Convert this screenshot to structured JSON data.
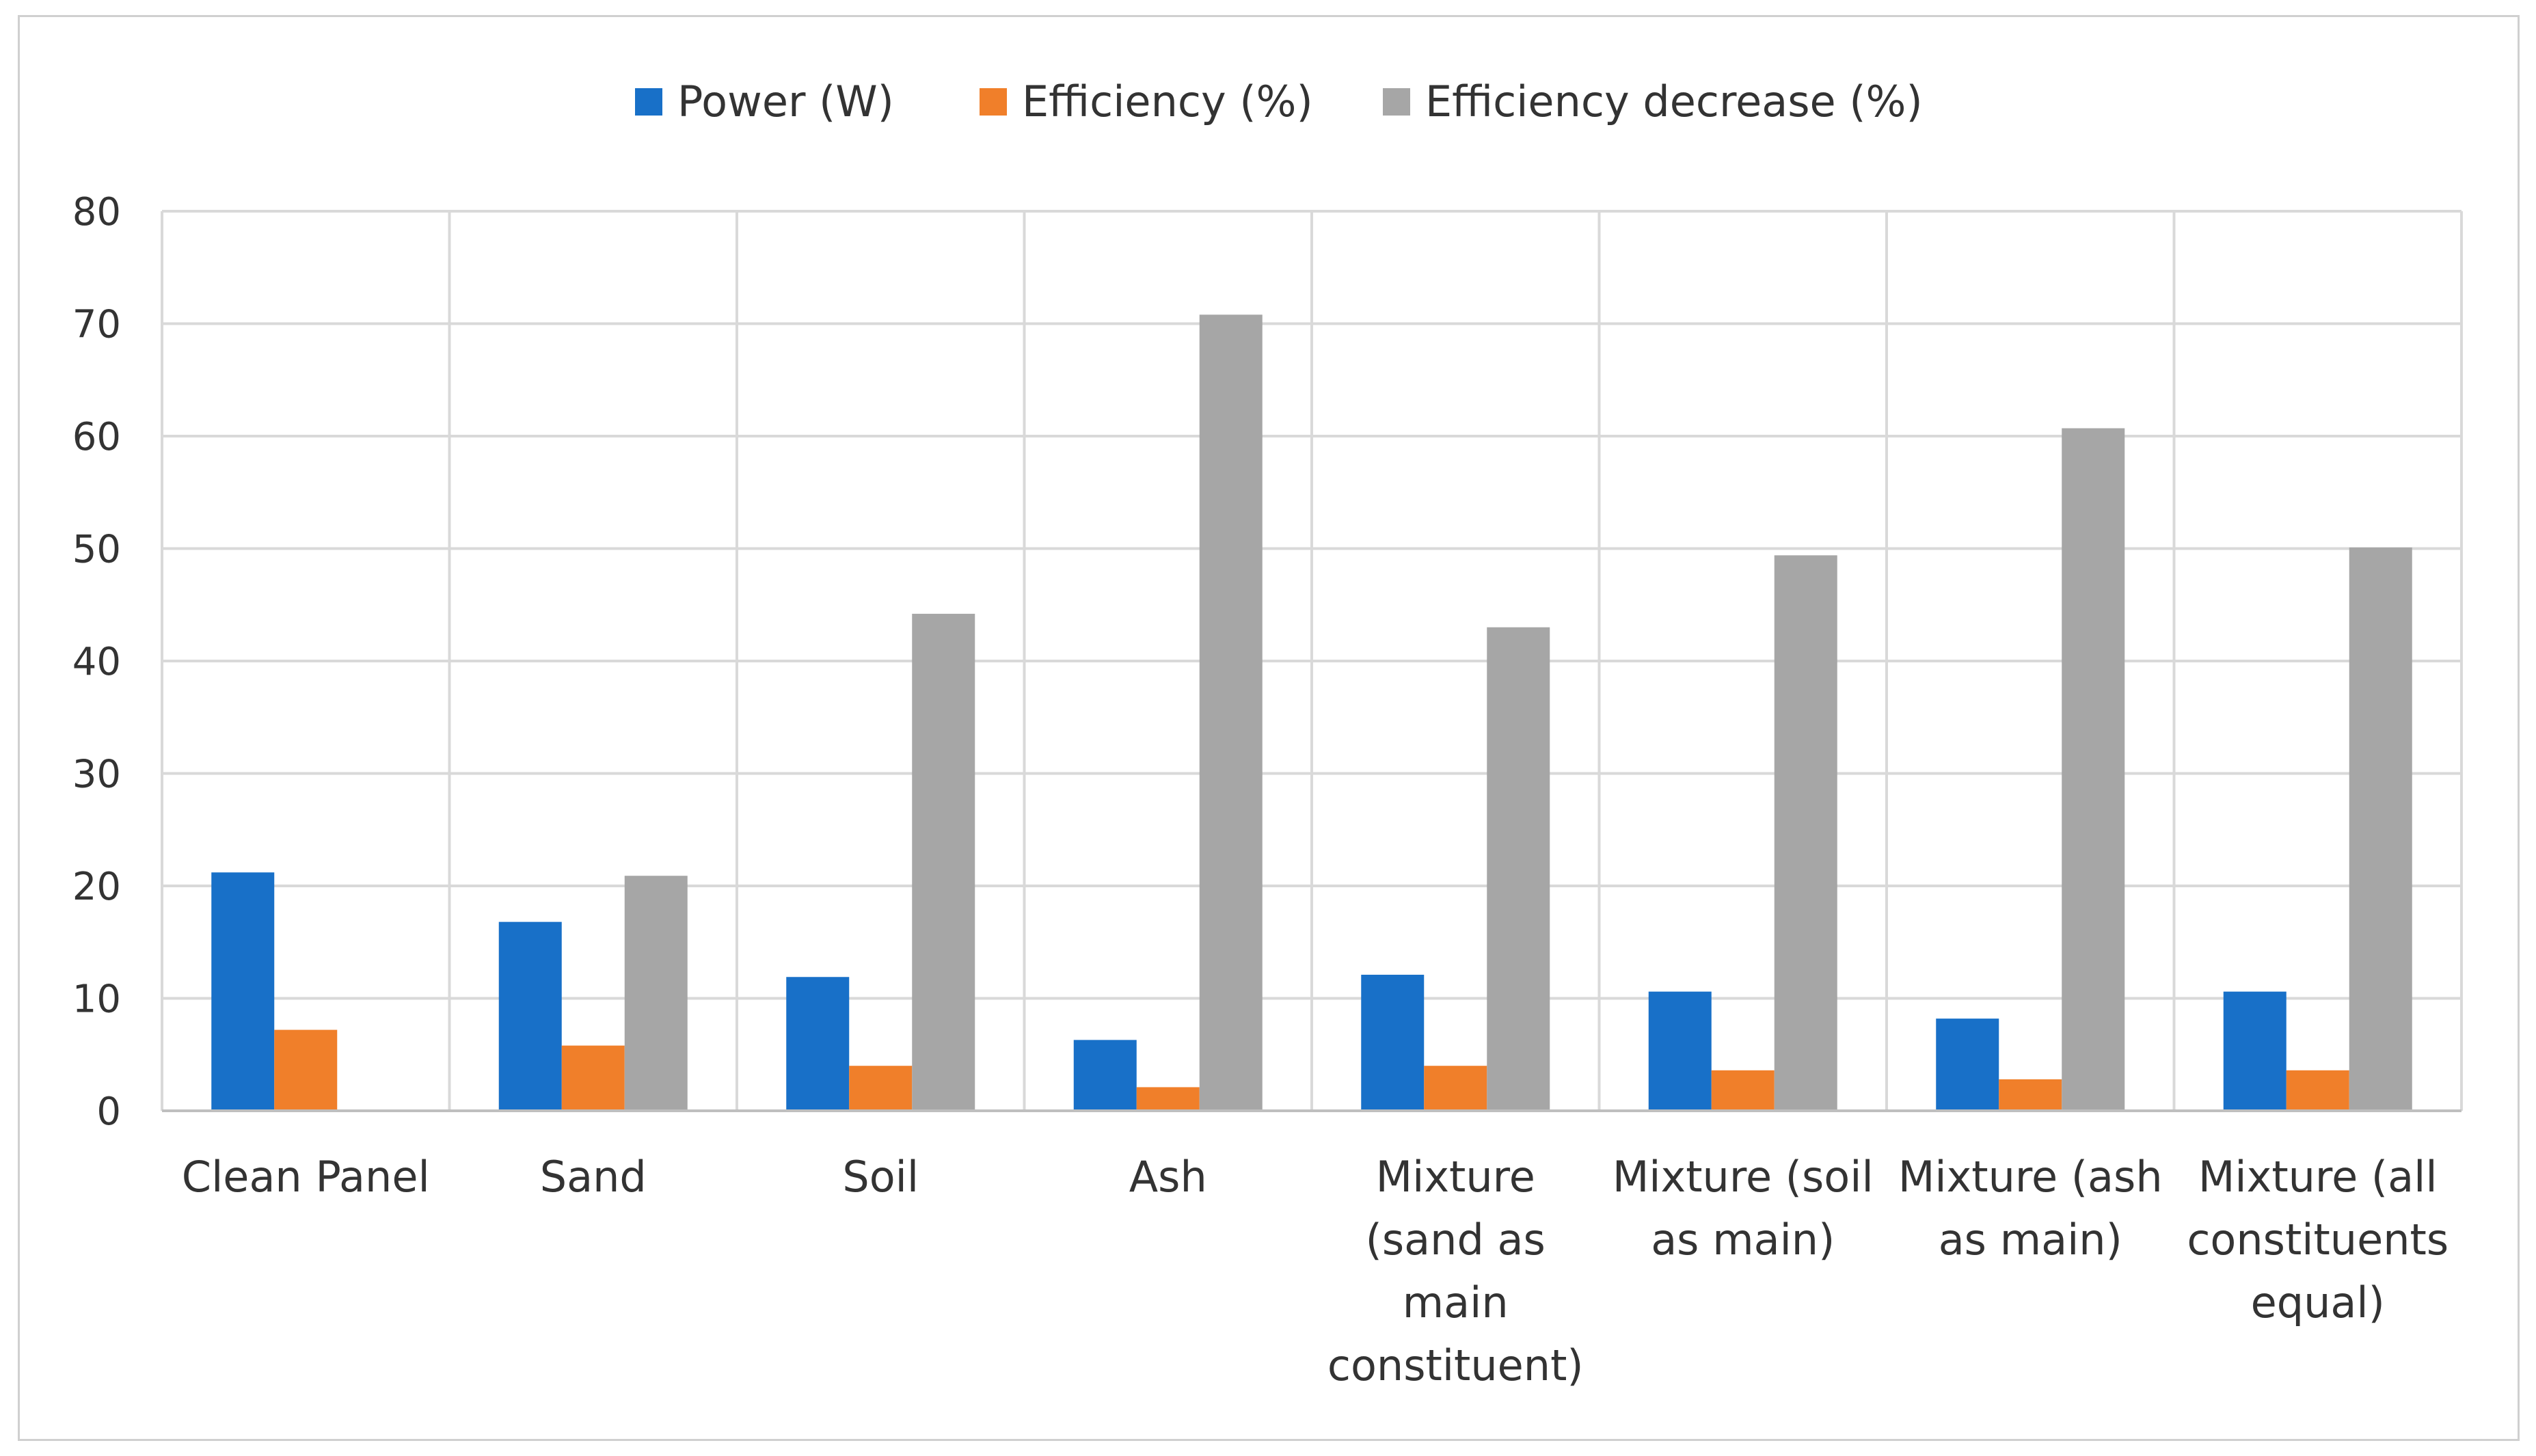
{
  "chart_data": {
    "type": "bar",
    "title": "",
    "xlabel": "",
    "ylabel": "",
    "ylim": [
      0,
      80
    ],
    "yticks": [
      "0",
      "10",
      "20",
      "30",
      "40",
      "50",
      "60",
      "70",
      "80"
    ],
    "grid": true,
    "legend_position": "top-center",
    "categories": [
      [
        "Clean Panel"
      ],
      [
        "Sand"
      ],
      [
        "Soil"
      ],
      [
        "Ash"
      ],
      [
        "Mixture",
        "(sand as",
        "main",
        "constituent)"
      ],
      [
        "Mixture (soil",
        "as main)"
      ],
      [
        "Mixture (ash",
        "as main)"
      ],
      [
        "Mixture (all",
        "constituents",
        "equal)"
      ]
    ],
    "series": [
      {
        "name": "Power (W)",
        "color": "#1870C8",
        "values": [
          21.2,
          16.8,
          11.9,
          6.3,
          12.1,
          10.6,
          8.2,
          10.6
        ]
      },
      {
        "name": "Efficiency (%)",
        "color": "#F07F2A",
        "values": [
          7.2,
          5.8,
          4.0,
          2.1,
          4.0,
          3.6,
          2.8,
          3.6
        ]
      },
      {
        "name": "Efficiency decrease (%)",
        "color": "#A6A6A6",
        "values": [
          0,
          20.9,
          44.2,
          70.8,
          43.0,
          49.4,
          60.7,
          50.1
        ]
      }
    ]
  }
}
